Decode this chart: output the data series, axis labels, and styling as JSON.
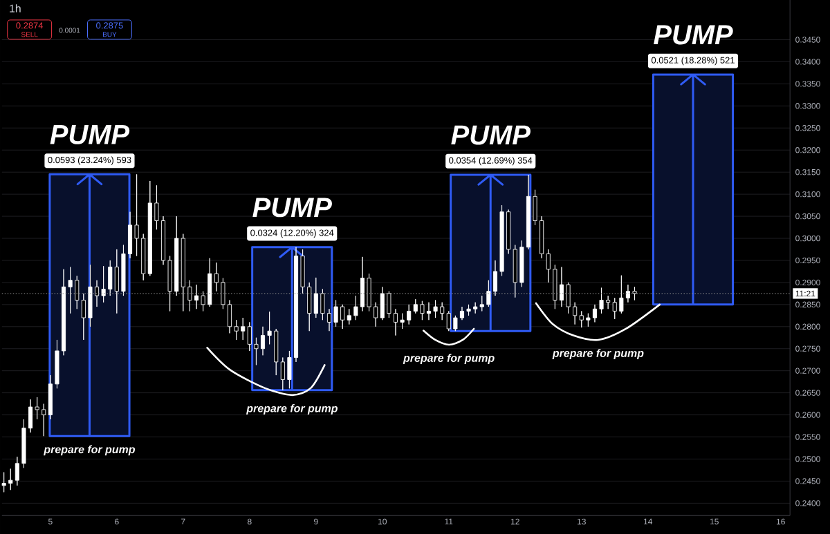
{
  "chart_data": {
    "type": "candlestick",
    "title": "1h",
    "annotations": [
      "0.2874",
      "SELL",
      "0.0001",
      "0.2875",
      "BUY",
      {
        "text": "PUMP",
        "x": 5.59,
        "y": 0.3145
      },
      {
        "text": "PUMP",
        "x": 8.64,
        "y": 0.298
      },
      {
        "text": "PUMP",
        "x": 11.63,
        "y": 0.3144
      },
      {
        "text": "PUMP",
        "x": 14.68,
        "y": 0.3371
      },
      {
        "text": "prepare for pump",
        "x": 5.59,
        "y": 0.2552
      },
      {
        "text": "prepare for pump",
        "x": 8.642,
        "y": 0.2645
      },
      {
        "text": "prepare for pump",
        "x": 11.004,
        "y": 0.2759
      },
      {
        "text": "prepare for pump",
        "x": 13.252,
        "y": 0.277
      },
      {
        "text": "11:21",
        "x": 16.14,
        "y": 0.2875
      }
    ],
    "series": [
      {
        "type": "candlestick",
        "color": "#ffffff",
        "x": [
          4.3,
          4.4,
          4.5,
          4.6,
          4.7,
          4.8,
          4.9,
          5.0,
          5.1,
          5.2,
          5.3,
          5.4,
          5.5,
          5.6,
          5.7,
          5.8,
          5.9,
          6.0,
          6.1,
          6.2,
          6.3,
          6.4,
          6.5,
          6.6,
          6.7,
          6.8,
          6.9,
          7.0,
          7.1,
          7.2,
          7.3,
          7.4,
          7.5,
          7.6,
          7.7,
          7.8,
          7.9,
          8.0,
          8.1,
          8.2,
          8.3,
          8.4,
          8.5,
          8.6,
          8.7,
          8.8,
          8.9,
          9.0,
          9.1,
          9.2,
          9.3,
          9.4,
          9.5,
          9.6,
          9.7,
          9.8,
          9.9,
          10.0,
          10.1,
          10.2,
          10.3,
          10.4,
          10.5,
          10.6,
          10.7,
          10.8,
          10.9,
          11.0,
          11.1,
          11.2,
          11.3,
          11.4,
          11.5,
          11.6,
          11.7,
          11.8,
          11.9,
          12.0,
          12.1,
          12.2,
          12.3,
          12.4,
          12.5,
          12.6,
          12.7,
          12.8,
          12.9,
          13.0,
          13.1,
          13.2,
          13.3,
          13.4,
          13.5,
          13.6,
          13.7,
          13.8
        ],
        "ohlc": [
          [
            0.244,
            0.247,
            0.2425,
            0.2445
          ],
          [
            0.2445,
            0.2478,
            0.243,
            0.2452
          ],
          [
            0.2452,
            0.2505,
            0.244,
            0.249
          ],
          [
            0.249,
            0.259,
            0.248,
            0.257
          ],
          [
            0.257,
            0.2635,
            0.256,
            0.2618
          ],
          [
            0.2618,
            0.264,
            0.259,
            0.2612
          ],
          [
            0.2612,
            0.2625,
            0.2552,
            0.26
          ],
          [
            0.26,
            0.269,
            0.259,
            0.267
          ],
          [
            0.267,
            0.277,
            0.266,
            0.2745
          ],
          [
            0.2745,
            0.293,
            0.2735,
            0.289
          ],
          [
            0.289,
            0.2935,
            0.283,
            0.2905
          ],
          [
            0.2905,
            0.2915,
            0.284,
            0.286
          ],
          [
            0.286,
            0.2875,
            0.277,
            0.282
          ],
          [
            0.282,
            0.294,
            0.28,
            0.289
          ],
          [
            0.289,
            0.2905,
            0.2845,
            0.287
          ],
          [
            0.287,
            0.2937,
            0.2855,
            0.2885
          ],
          [
            0.2885,
            0.295,
            0.287,
            0.2935
          ],
          [
            0.2935,
            0.2975,
            0.283,
            0.288
          ],
          [
            0.288,
            0.2985,
            0.287,
            0.2965
          ],
          [
            0.2965,
            0.306,
            0.2955,
            0.303
          ],
          [
            0.303,
            0.3145,
            0.296,
            0.3
          ],
          [
            0.3,
            0.301,
            0.2905,
            0.292
          ],
          [
            0.292,
            0.313,
            0.2915,
            0.308
          ],
          [
            0.308,
            0.312,
            0.302,
            0.304
          ],
          [
            0.304,
            0.305,
            0.294,
            0.295
          ],
          [
            0.295,
            0.296,
            0.2835,
            0.288
          ],
          [
            0.288,
            0.305,
            0.287,
            0.3
          ],
          [
            0.3,
            0.301,
            0.2835,
            0.289
          ],
          [
            0.289,
            0.2905,
            0.2835,
            0.286
          ],
          [
            0.286,
            0.2895,
            0.284,
            0.287
          ],
          [
            0.287,
            0.288,
            0.2835,
            0.285
          ],
          [
            0.285,
            0.2955,
            0.2845,
            0.292
          ],
          [
            0.292,
            0.2945,
            0.288,
            0.29
          ],
          [
            0.29,
            0.291,
            0.284,
            0.285
          ],
          [
            0.285,
            0.286,
            0.2785,
            0.28
          ],
          [
            0.28,
            0.2815,
            0.277,
            0.279
          ],
          [
            0.279,
            0.282,
            0.277,
            0.28
          ],
          [
            0.28,
            0.281,
            0.2745,
            0.276
          ],
          [
            0.276,
            0.2775,
            0.2713,
            0.275
          ],
          [
            0.275,
            0.28,
            0.2735,
            0.278
          ],
          [
            0.278,
            0.2834,
            0.276,
            0.279
          ],
          [
            0.279,
            0.2795,
            0.269,
            0.272
          ],
          [
            0.272,
            0.273,
            0.2656,
            0.268
          ],
          [
            0.268,
            0.2745,
            0.266,
            0.273
          ],
          [
            0.273,
            0.298,
            0.272,
            0.296
          ],
          [
            0.296,
            0.2975,
            0.2875,
            0.289
          ],
          [
            0.289,
            0.29,
            0.279,
            0.283
          ],
          [
            0.283,
            0.2911,
            0.282,
            0.2875
          ],
          [
            0.2875,
            0.2885,
            0.2815,
            0.283
          ],
          [
            0.283,
            0.284,
            0.279,
            0.281
          ],
          [
            0.281,
            0.286,
            0.28,
            0.2845
          ],
          [
            0.2845,
            0.285,
            0.2795,
            0.2815
          ],
          [
            0.2815,
            0.284,
            0.2805,
            0.2825
          ],
          [
            0.2825,
            0.287,
            0.2815,
            0.2845
          ],
          [
            0.2845,
            0.2958,
            0.2835,
            0.291
          ],
          [
            0.291,
            0.292,
            0.2835,
            0.2845
          ],
          [
            0.2845,
            0.2855,
            0.28,
            0.282
          ],
          [
            0.282,
            0.289,
            0.2815,
            0.2875
          ],
          [
            0.2875,
            0.288,
            0.282,
            0.283
          ],
          [
            0.283,
            0.284,
            0.278,
            0.281
          ],
          [
            0.281,
            0.283,
            0.2795,
            0.2815
          ],
          [
            0.2815,
            0.285,
            0.2805,
            0.2835
          ],
          [
            0.2835,
            0.2862,
            0.283,
            0.285
          ],
          [
            0.285,
            0.2858,
            0.2815,
            0.283
          ],
          [
            0.283,
            0.2855,
            0.2815,
            0.2835
          ],
          [
            0.2835,
            0.286,
            0.282,
            0.2845
          ],
          [
            0.2845,
            0.2855,
            0.2815,
            0.283
          ],
          [
            0.283,
            0.2835,
            0.279,
            0.2795
          ],
          [
            0.2795,
            0.2825,
            0.279,
            0.282
          ],
          [
            0.282,
            0.2845,
            0.2815,
            0.2835
          ],
          [
            0.2835,
            0.285,
            0.2825,
            0.284
          ],
          [
            0.284,
            0.2855,
            0.283,
            0.2845
          ],
          [
            0.2845,
            0.287,
            0.2835,
            0.285
          ],
          [
            0.285,
            0.2905,
            0.2845,
            0.288
          ],
          [
            0.288,
            0.295,
            0.287,
            0.2925
          ],
          [
            0.2925,
            0.3075,
            0.2915,
            0.306
          ],
          [
            0.306,
            0.3065,
            0.2965,
            0.2975
          ],
          [
            0.2975,
            0.2985,
            0.2866,
            0.29
          ],
          [
            0.29,
            0.2995,
            0.289,
            0.298
          ],
          [
            0.298,
            0.3144,
            0.2975,
            0.3095
          ],
          [
            0.3095,
            0.311,
            0.303,
            0.304
          ],
          [
            0.304,
            0.305,
            0.2955,
            0.2965
          ],
          [
            0.2965,
            0.2975,
            0.29,
            0.293
          ],
          [
            0.293,
            0.294,
            0.284,
            0.286
          ],
          [
            0.286,
            0.2935,
            0.2845,
            0.2895
          ],
          [
            0.2895,
            0.29,
            0.283,
            0.2845
          ],
          [
            0.2845,
            0.2855,
            0.2805,
            0.2825
          ],
          [
            0.2825,
            0.2835,
            0.2798,
            0.2815
          ],
          [
            0.2815,
            0.283,
            0.28,
            0.282
          ],
          [
            0.282,
            0.285,
            0.281,
            0.284
          ],
          [
            0.284,
            0.2888,
            0.283,
            0.286
          ],
          [
            0.286,
            0.287,
            0.284,
            0.2855
          ],
          [
            0.2855,
            0.2865,
            0.2817,
            0.2835
          ],
          [
            0.2835,
            0.2916,
            0.283,
            0.2865
          ],
          [
            0.2865,
            0.2895,
            0.2855,
            0.288
          ],
          [
            0.288,
            0.289,
            0.286,
            0.2875
          ]
        ]
      },
      {
        "type": "bar",
        "color": "#2f5bf5",
        "x": [
          5.59,
          8.64,
          11.63,
          14.68
        ],
        "base": [
          0.2552,
          0.2656,
          0.279,
          0.285
        ],
        "values": [
          0.0593,
          0.0324,
          0.0354,
          0.0521
        ],
        "value_labels": [
          "0.0593 (23.24%) 593",
          "0.0324 (12.20%) 324",
          "0.0354 (12.69%) 354",
          "0.0521 (18.28%) 521"
        ]
      },
      {
        "type": "line",
        "color": "#ffffff",
        "x": [
          7.362,
          7.706,
          8.226,
          8.642,
          8.923,
          9.131
        ],
        "values": [
          0.2752,
          0.2702,
          0.2661,
          0.2645,
          0.2661,
          0.2713
        ]
      },
      {
        "type": "line",
        "color": "#ffffff",
        "x": [
          10.619,
          10.796,
          11.004,
          11.212,
          11.379
        ],
        "values": [
          0.2791,
          0.277,
          0.2759,
          0.277,
          0.2795
        ]
      },
      {
        "type": "line",
        "color": "#ffffff",
        "x": [
          12.315,
          12.565,
          12.877,
          13.252,
          13.668,
          14.178
        ],
        "values": [
          0.2853,
          0.2806,
          0.278,
          0.277,
          0.2795,
          0.285
        ]
      }
    ],
    "xlim": [
      4.27,
      16.14
    ],
    "ylim": [
      0.2372,
      0.354
    ],
    "xticks": [
      5,
      6,
      7,
      8,
      9,
      10,
      11,
      12,
      13,
      14,
      15,
      16
    ],
    "yticks": [
      {
        "value": 0.24,
        "label": "0.2400"
      },
      {
        "value": 0.245,
        "label": "0.2450"
      },
      {
        "value": 0.25,
        "label": "0.2500"
      },
      {
        "value": 0.255,
        "label": "0.2550"
      },
      {
        "value": 0.26,
        "label": "0.2600"
      },
      {
        "value": 0.265,
        "label": "0.2650"
      },
      {
        "value": 0.27,
        "label": "0.2700"
      },
      {
        "value": 0.275,
        "label": "0.2750"
      },
      {
        "value": 0.28,
        "label": "0.2800"
      },
      {
        "value": 0.285,
        "label": "0.2850"
      },
      {
        "value": 0.29,
        "label": "0.2900"
      },
      {
        "value": 0.295,
        "label": "0.2950"
      },
      {
        "value": 0.3,
        "label": "0.3000"
      },
      {
        "value": 0.305,
        "label": "0.3050"
      },
      {
        "value": 0.31,
        "label": "0.3100"
      },
      {
        "value": 0.315,
        "label": "0.3150"
      },
      {
        "value": 0.32,
        "label": "0.3200"
      },
      {
        "value": 0.325,
        "label": "0.3250"
      },
      {
        "value": 0.33,
        "label": "0.3300"
      },
      {
        "value": 0.335,
        "label": "0.3350"
      },
      {
        "value": 0.34,
        "label": "0.3400"
      },
      {
        "value": 0.345,
        "label": "0.3450"
      }
    ],
    "grid": "y",
    "ref_lines": [
      {
        "axis": "y",
        "value": 0.2875,
        "line_style": "dotted",
        "color": "#8c8c8c"
      }
    ]
  }
}
